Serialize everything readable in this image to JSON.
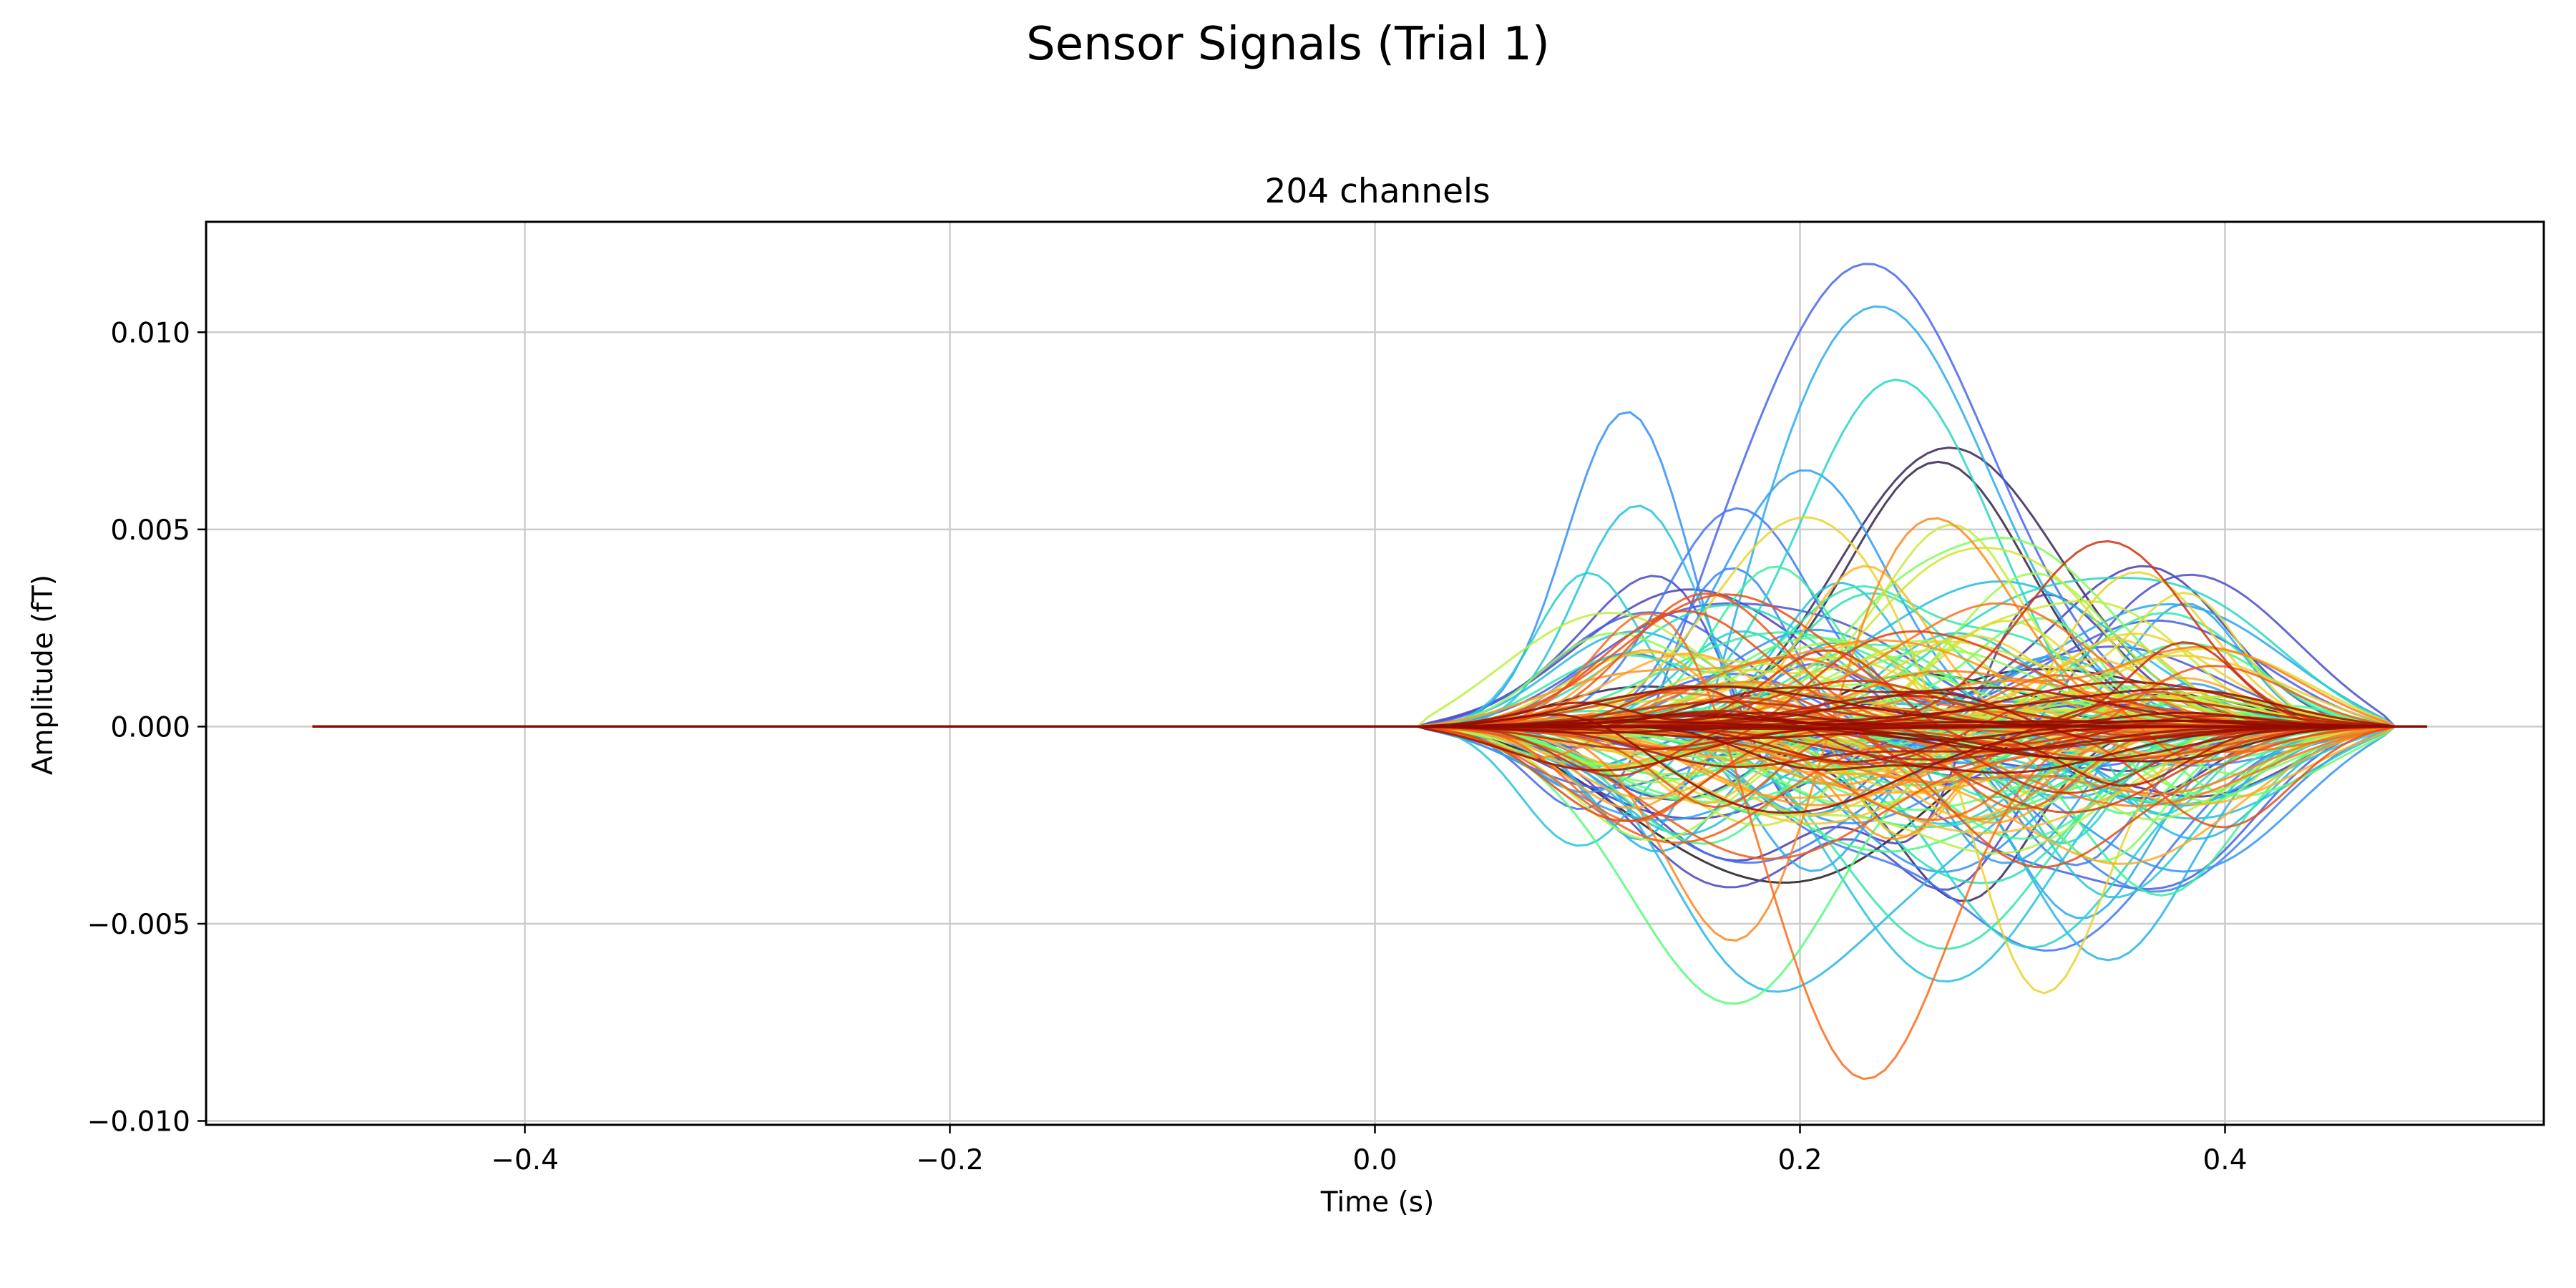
{
  "chart_data": {
    "type": "line",
    "suptitle": "Sensor Signals  (Trial 1)",
    "title": "204 channels",
    "xlabel": "Time (s)",
    "ylabel": "Amplitude (fT)",
    "xlim": [
      -0.55,
      0.55
    ],
    "ylim": [
      -0.0101,
      0.0128
    ],
    "xticks": [
      {
        "value": -0.4,
        "label": "−0.4"
      },
      {
        "value": -0.2,
        "label": "−0.2"
      },
      {
        "value": 0.0,
        "label": "0.0"
      },
      {
        "value": 0.2,
        "label": "0.2"
      },
      {
        "value": 0.4,
        "label": "0.4"
      }
    ],
    "yticks": [
      {
        "value": 0.01,
        "label": "0.010"
      },
      {
        "value": 0.005,
        "label": "0.005"
      },
      {
        "value": 0.0,
        "label": "0.000"
      },
      {
        "value": -0.005,
        "label": "−0.005"
      },
      {
        "value": -0.01,
        "label": "−0.010"
      }
    ],
    "grid": true,
    "colormap": "turbo",
    "n_channels": 204,
    "time": {
      "start": -0.5,
      "stop": 0.495,
      "step": 0.005
    },
    "signal_onset": 0.02,
    "signal_end": 0.48,
    "representative_channels": [
      {
        "colormap_pos": 0.12,
        "peaks": [
          {
            "t": 0.23,
            "amp": 0.0118,
            "w": 0.06
          },
          {
            "t": 0.1,
            "amp": -0.0042,
            "w": 0.03
          }
        ]
      },
      {
        "colormap_pos": 0.18,
        "peaks": [
          {
            "t": 0.115,
            "amp": 0.011,
            "w": 0.03
          },
          {
            "t": 0.22,
            "amp": -0.0025,
            "w": 0.05
          }
        ]
      },
      {
        "colormap_pos": 0.22,
        "peaks": [
          {
            "t": 0.235,
            "amp": 0.0107,
            "w": 0.055
          },
          {
            "t": 0.13,
            "amp": -0.0052,
            "w": 0.03
          }
        ]
      },
      {
        "colormap_pos": 0.26,
        "peaks": [
          {
            "t": 0.12,
            "amp": 0.0074,
            "w": 0.03
          },
          {
            "t": 0.27,
            "amp": -0.0065,
            "w": 0.05
          }
        ]
      },
      {
        "colormap_pos": 0.3,
        "peaks": [
          {
            "t": 0.245,
            "amp": 0.0088,
            "w": 0.045
          },
          {
            "t": 0.37,
            "amp": -0.003,
            "w": 0.025
          }
        ]
      },
      {
        "colormap_pos": 0.78,
        "peaks": [
          {
            "t": 0.23,
            "amp": -0.009,
            "w": 0.04
          },
          {
            "t": 0.13,
            "amp": 0.004,
            "w": 0.03
          }
        ]
      },
      {
        "colormap_pos": 0.74,
        "peaks": [
          {
            "t": 0.17,
            "amp": -0.0064,
            "w": 0.035
          },
          {
            "t": 0.26,
            "amp": 0.0055,
            "w": 0.04
          }
        ]
      },
      {
        "colormap_pos": 0.62,
        "peaks": [
          {
            "t": 0.315,
            "amp": -0.0074,
            "w": 0.03
          },
          {
            "t": 0.2,
            "amp": 0.0055,
            "w": 0.045
          }
        ]
      },
      {
        "colormap_pos": 0.82,
        "peaks": [
          {
            "t": 0.37,
            "amp": 0.0011,
            "w": 0.025
          },
          {
            "t": 0.14,
            "amp": 0.0035,
            "w": 0.04
          }
        ]
      }
    ]
  }
}
